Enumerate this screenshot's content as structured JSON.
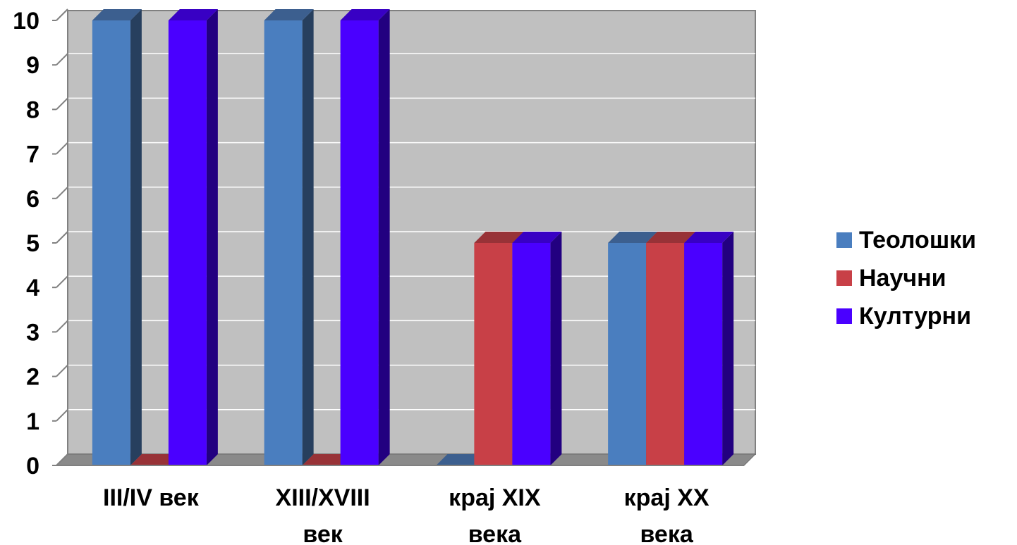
{
  "chart_data": {
    "type": "bar",
    "categories": [
      [
        "III/IV век"
      ],
      [
        "XIII/XVIII",
        "век"
      ],
      [
        "крај XIX",
        "века"
      ],
      [
        "крај XX",
        "века"
      ]
    ],
    "series": [
      {
        "name": "Теолошки",
        "values": [
          10,
          10,
          0,
          5
        ],
        "color": "#4a7ebf",
        "side": "#273f5e",
        "top": "#3c5f8f"
      },
      {
        "name": "Научни",
        "values": [
          0,
          0,
          5,
          5
        ],
        "color": "#c84047",
        "side": "#6b2023",
        "top": "#983237"
      },
      {
        "name": "Културни",
        "values": [
          10,
          10,
          5,
          5
        ],
        "color": "#4a00ff",
        "side": "#220080",
        "top": "#3800c4"
      }
    ],
    "yticks": [
      "0",
      "1",
      "2",
      "3",
      "4",
      "5",
      "6",
      "7",
      "8",
      "9",
      "10"
    ],
    "ylim": [
      0,
      10
    ],
    "grid": true,
    "legend_position": "right"
  }
}
